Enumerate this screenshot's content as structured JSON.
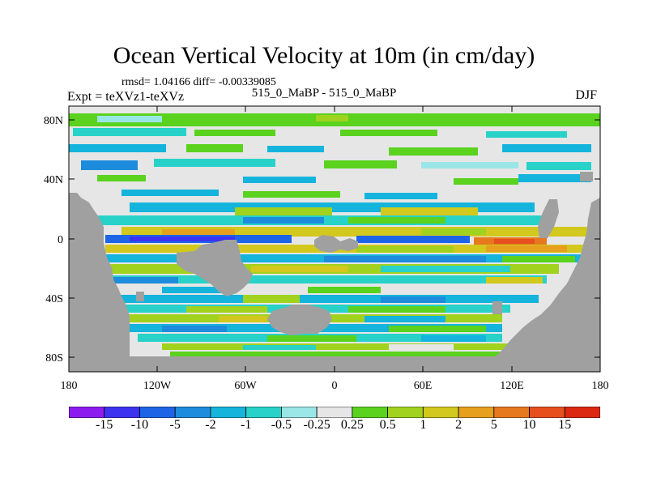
{
  "figure": {
    "title": "Ocean Vertical Velocity at 10m (in cm/day)",
    "stats": "rmsd= 1.04166 diff= -0.00339085",
    "experiment": "Expt = teXVz1-teXVz",
    "period": "515_0_MaBP - 515_0_MaBP",
    "season": "DJF"
  },
  "axes": {
    "y_ticks": [
      "80N",
      "40N",
      "0",
      "40S",
      "80S"
    ],
    "x_ticks": [
      "180",
      "120W",
      "60W",
      "0",
      "60E",
      "120E",
      "180"
    ]
  },
  "colorbar": {
    "labels": [
      "-15",
      "-10",
      "-5",
      "-2",
      "-1",
      "-0.5",
      "-0.25",
      "0.25",
      "0.5",
      "1",
      "2",
      "5",
      "10",
      "15"
    ],
    "colors": [
      "#8c1bf0",
      "#3c32f0",
      "#1e64e6",
      "#1e8cdc",
      "#14b4dc",
      "#28d2c8",
      "#9ae6e6",
      "#e6e6e6",
      "#5ad21e",
      "#a0d21e",
      "#d2c81e",
      "#e6a01e",
      "#e6781e",
      "#e6501e",
      "#dc2810"
    ]
  },
  "land_color": "#a0a0a0"
}
